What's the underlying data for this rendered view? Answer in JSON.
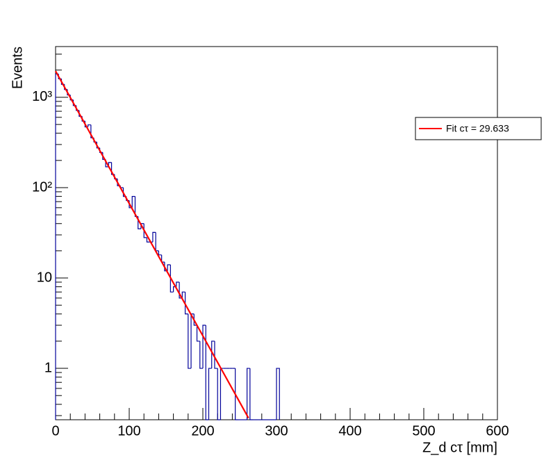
{
  "chart_data": {
    "type": "histogram",
    "xlabel": "Z_d cτ [mm]",
    "ylabel": "Events",
    "bins": [
      0,
      4,
      8,
      12,
      16,
      20,
      24,
      28,
      32,
      36,
      40,
      44,
      48,
      52,
      56,
      60,
      64,
      68,
      72,
      76,
      80,
      84,
      88,
      92,
      96,
      100,
      104,
      108,
      112,
      116,
      120,
      124,
      128,
      132,
      136,
      140,
      144,
      148,
      152,
      156,
      160,
      164,
      168,
      172,
      176,
      180,
      184,
      188,
      192,
      196,
      200,
      204,
      208,
      212,
      216,
      220,
      224,
      228,
      232,
      236,
      240,
      244,
      248,
      252,
      256,
      260,
      264,
      268,
      272,
      276,
      280,
      284,
      288,
      292,
      296,
      300,
      304
    ],
    "counts": [
      1810,
      1600,
      1390,
      1220,
      1060,
      935,
      810,
      715,
      615,
      545,
      470,
      495,
      355,
      320,
      275,
      245,
      205,
      170,
      190,
      140,
      125,
      105,
      100,
      80,
      72,
      60,
      80,
      48,
      35,
      40,
      28,
      25,
      25,
      32,
      20,
      18,
      15,
      12,
      14,
      7,
      8,
      9,
      6,
      7,
      4,
      1,
      4,
      3,
      2,
      1,
      3,
      0,
      1,
      2,
      1,
      0,
      1,
      1,
      1,
      1,
      1,
      0,
      0,
      0,
      0,
      1,
      0,
      0,
      0,
      0,
      0,
      0,
      0,
      0,
      0,
      1
    ],
    "color": "#000099",
    "fit": {
      "name": "Fit cτ = 29.633",
      "color": "#ff0000",
      "x": [
        0,
        50,
        100,
        150,
        200,
        262
      ],
      "values": [
        1950,
        361,
        66.8,
        12.36,
        2.29,
        0.282
      ]
    },
    "xlim": [
      0,
      600
    ],
    "xticks": [
      0,
      100,
      200,
      300,
      400,
      500,
      600
    ],
    "xminor_ticks": [
      20,
      40,
      60,
      80,
      120,
      140,
      160,
      180,
      220,
      240,
      260,
      280,
      320,
      340,
      360,
      380,
      420,
      440,
      460,
      480,
      520,
      540,
      560,
      580
    ],
    "ylim": [
      0.27,
      3640
    ],
    "ylog": true,
    "yticks": [
      1,
      10,
      {
        "value": 100,
        "label": "10²"
      },
      {
        "value": 1000,
        "label": "10³"
      }
    ],
    "yminor_ticks": [
      0.3,
      0.4,
      0.5,
      0.6,
      0.7,
      0.8,
      0.9,
      2,
      3,
      4,
      5,
      6,
      7,
      8,
      9,
      20,
      30,
      40,
      50,
      60,
      70,
      80,
      90,
      200,
      300,
      400,
      500,
      600,
      700,
      800,
      900,
      2000,
      3000
    ],
    "legend": "upper right"
  }
}
